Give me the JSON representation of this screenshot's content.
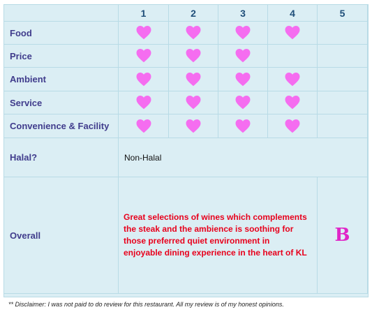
{
  "columns": [
    "1",
    "2",
    "3",
    "4",
    "5"
  ],
  "rows": [
    {
      "label": "Food",
      "hearts": 4
    },
    {
      "label": "Price",
      "hearts": 3
    },
    {
      "label": "Ambient",
      "hearts": 4
    },
    {
      "label": "Service",
      "hearts": 4
    },
    {
      "label": "Convenience & Facility",
      "hearts": 4
    }
  ],
  "halal": {
    "label": "Halal?",
    "value": "Non-Halal"
  },
  "overall": {
    "label": "Overall",
    "text": "Great selections of wines which complements the steak and the ambience is soothing for those preferred quiet environment in enjoyable dining experience in the heart of KL",
    "grade": "B"
  },
  "disclaimer": "** Disclaimer: I was not paid to do review for this restaurant. All my review is of my honest opinions.",
  "colors": {
    "heart": "#f56df0",
    "grade": "#e026c8",
    "overall_text": "#e8001c",
    "row_label": "#403c8c",
    "table_bg": "#dbeef4"
  },
  "icons": {
    "rating": "heart-icon"
  }
}
